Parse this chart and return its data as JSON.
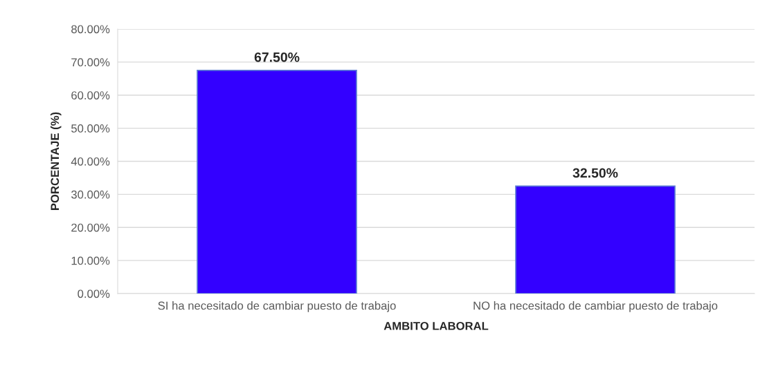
{
  "chart_data": {
    "type": "bar",
    "xlabel": "AMBITO LABORAL",
    "ylabel": "PORCENTAJE (%)",
    "categories": [
      "SI ha necesitado de cambiar puesto de trabajo",
      "NO ha necesitado de cambiar puesto de trabajo"
    ],
    "values": [
      67.5,
      32.5
    ],
    "color": "#3300ff",
    "value_labels": [
      "67.50%",
      "32.50%"
    ],
    "ylim": [
      0,
      80
    ],
    "yticks": [
      {
        "value": 0,
        "label": "0.00%"
      },
      {
        "value": 10,
        "label": "10.00%"
      },
      {
        "value": 20,
        "label": "20.00%"
      },
      {
        "value": 30,
        "label": "30.00%"
      },
      {
        "value": 40,
        "label": "40.00%"
      },
      {
        "value": 50,
        "label": "50.00%"
      },
      {
        "value": 60,
        "label": "60.00%"
      },
      {
        "value": 70,
        "label": "70.00%"
      },
      {
        "value": 80,
        "label": "80.00%"
      }
    ],
    "grid": "y"
  }
}
